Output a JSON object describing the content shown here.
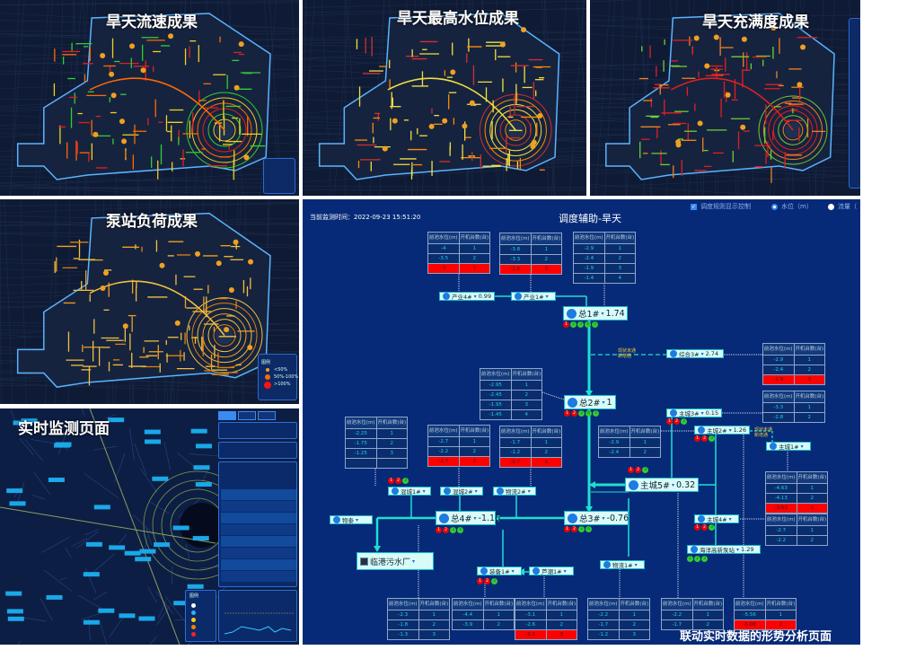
{
  "panels": {
    "flow": {
      "title": "旱天流速成果",
      "pipe_colors": [
        "#e02020",
        "#ff6a00",
        "#f0d020",
        "#30d030"
      ]
    },
    "level": {
      "title": "旱天最高水位成果",
      "pipe_colors": [
        "#f0e040",
        "#f0e040",
        "#ff8a00",
        "#d03030"
      ]
    },
    "fullness": {
      "title": "旱天充满度成果",
      "pipe_colors": [
        "#e02020",
        "#e02020",
        "#f08020",
        "#70d030"
      ]
    },
    "pump": {
      "title": "泵站负荷成果",
      "pipe_colors": [
        "#f0a020",
        "#f0c040",
        "#e08010",
        "#f0c040"
      ],
      "legend": {
        "title": "图例",
        "items": [
          "<50%",
          "50%-100%",
          ">100%"
        ],
        "colors": [
          "#f0a020",
          "#ff6a00",
          "#ff1010"
        ]
      }
    },
    "monitor": {
      "title": "实时监测页面",
      "legend_title": "图例",
      "legend_colors": [
        "#ffffff",
        "#2fb0ff",
        "#ffd000",
        "#ff8000",
        "#ff2020"
      ]
    }
  },
  "diagram": {
    "timestamp_label": "当前监测时间：",
    "timestamp": "2022-09-23 15:51:20",
    "title": "调度辅助-旱天",
    "controls": {
      "rule_checkbox": "调度规则显示控制",
      "rule_checked": true,
      "radio_level": "水位（m）",
      "radio_flow": "流量（",
      "selected": "level"
    },
    "table_header": [
      "前池水位(m)",
      "开机台数(台)"
    ],
    "tables": [
      {
        "rows": [
          [
            "-4",
            "1"
          ],
          [
            "-3.5",
            "2"
          ],
          [
            "-3",
            "3"
          ]
        ],
        "alert_row": 2
      },
      {
        "rows": [
          [
            "-3.8",
            "1"
          ],
          [
            "-3.3",
            "2"
          ],
          [
            "-2.8",
            "3"
          ]
        ],
        "alert_row": 2
      },
      {
        "rows": [
          [
            "-2.9",
            "1"
          ],
          [
            "-2.4",
            "2"
          ],
          [
            "-1.9",
            "3"
          ],
          [
            "-1.4",
            "4"
          ]
        ]
      },
      {
        "rows": [
          [
            "-2.9",
            "1"
          ],
          [
            "-2.4",
            "2"
          ],
          [
            "-1.9",
            "3"
          ]
        ],
        "alert_row": 2
      },
      {
        "rows": [
          [
            "-2.95",
            "1"
          ],
          [
            "-2.45",
            "2"
          ],
          [
            "-1.95",
            "3"
          ],
          [
            "-1.45",
            "4"
          ]
        ]
      },
      {
        "rows": [
          [
            "-3.3",
            "1"
          ],
          [
            "-2.8",
            "2"
          ]
        ]
      },
      {
        "rows": [
          [
            "-2.9",
            "1"
          ],
          [
            "-2.4",
            "2"
          ]
        ]
      },
      {
        "rows": [
          [
            "-2.25",
            "1"
          ],
          [
            "-1.75",
            "2"
          ],
          [
            "-1.25",
            "3"
          ],
          [
            "",
            ""
          ]
        ]
      },
      {
        "rows": [
          [
            "-2.7",
            "1"
          ],
          [
            "-2.2",
            "2"
          ],
          [
            "-1.7",
            "3"
          ]
        ],
        "alert_row": 2
      },
      {
        "rows": [
          [
            "-1.7",
            "1"
          ],
          [
            "-1.2",
            "2"
          ],
          [
            "-0.7",
            "3"
          ]
        ],
        "alert_row": 2
      },
      {
        "rows": [
          [
            "-4.63",
            "1"
          ],
          [
            "-4.13",
            "2"
          ],
          [
            "-3.63",
            "3"
          ]
        ],
        "alert_row": 2
      },
      {
        "rows": [
          [
            "-2.7",
            "1"
          ],
          [
            "-2.2",
            "2"
          ]
        ]
      },
      {
        "rows": [
          [
            "-2.3",
            "1"
          ],
          [
            "-1.8",
            "2"
          ],
          [
            "-1.3",
            "3"
          ]
        ]
      },
      {
        "rows": [
          [
            "-4.4",
            "1"
          ],
          [
            "-3.9",
            "2"
          ]
        ]
      },
      {
        "rows": [
          [
            "-3.1",
            "1"
          ],
          [
            "-2.6",
            "2"
          ],
          [
            "-2.1",
            "3"
          ]
        ],
        "alert_row": 2
      },
      {
        "rows": [
          [
            "-2.2",
            "1"
          ],
          [
            "-1.7",
            "2"
          ],
          [
            "-1.2",
            "3"
          ]
        ]
      },
      {
        "rows": [
          [
            "-2.2",
            "1"
          ],
          [
            "-1.7",
            "2"
          ]
        ]
      },
      {
        "rows": [
          [
            "-5.56",
            "1"
          ],
          [
            "-5.06",
            "2"
          ]
        ],
        "alert_row": 1
      }
    ],
    "nodes": [
      {
        "label": "产业4#",
        "value": "0.99"
      },
      {
        "label": "产业1#",
        "value": ""
      },
      {
        "label": "总1#",
        "value": "1.74"
      },
      {
        "label": "综合3#",
        "value": "2.74"
      },
      {
        "label": "总2#",
        "value": "1"
      },
      {
        "label": "主城3#",
        "value": "0.15"
      },
      {
        "label": "主城2#",
        "value": "1.26"
      },
      {
        "label": "主城1#",
        "value": ""
      },
      {
        "label": "主城5#",
        "value": "0.32"
      },
      {
        "label": "主城4#",
        "value": ""
      },
      {
        "label": "海洋高新泵站",
        "value": "1.29"
      },
      {
        "label": "混城1#",
        "value": ""
      },
      {
        "label": "混城2#",
        "value": ""
      },
      {
        "label": "物流2#",
        "value": ""
      },
      {
        "label": "物泰",
        "value": ""
      },
      {
        "label": "总4#",
        "value": "-1.16"
      },
      {
        "label": "总3#",
        "value": "-0.76"
      },
      {
        "label": "装备1#",
        "value": ""
      },
      {
        "label": "芦潮1#",
        "value": ""
      },
      {
        "label": "物流1#",
        "value": ""
      }
    ],
    "plant": {
      "label": "临港污水厂"
    },
    "pump_status": [
      [
        "off",
        "on",
        "on",
        "on",
        "on"
      ],
      [
        "off",
        "off",
        "on",
        "on",
        "on"
      ],
      [
        "off",
        "off",
        "on"
      ],
      [
        "off",
        "off",
        "on"
      ],
      [
        "off",
        "off",
        "on"
      ],
      [
        "off",
        "off",
        "on"
      ],
      [
        "off",
        "off",
        "on"
      ],
      [
        "off",
        "off",
        "on",
        "on"
      ],
      [
        "off",
        "off",
        "on",
        "on"
      ],
      [
        "off",
        "off",
        "on"
      ],
      [
        "on",
        "on",
        "on"
      ]
    ],
    "notes": [
      [
        "现状未通",
        "新增通"
      ],
      [
        "现状未通",
        "新增通"
      ]
    ],
    "caption": "联动实时数据的形势分析页面",
    "colors": {
      "background": "#062a78",
      "main_pipe": "#1ee0d0",
      "alert": "#ff0000",
      "pump_on": "#33cc33",
      "pump_off": "#ee0000"
    }
  }
}
